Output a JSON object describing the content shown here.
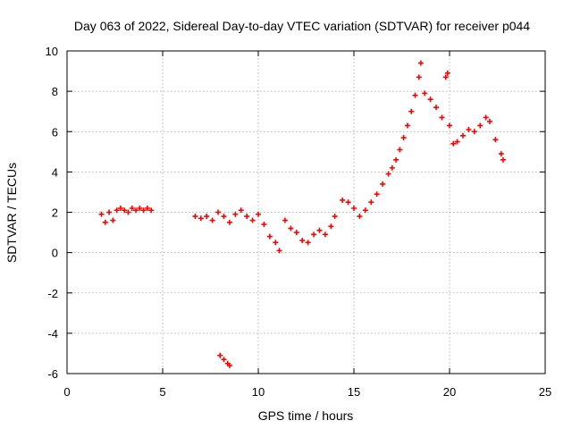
{
  "chart_data": {
    "type": "scatter",
    "title": "Day 063 of 2022, Sidereal Day-to-day VTEC variation (SDTVAR) for receiver p044",
    "xlabel": "GPS time / hours",
    "ylabel": "SDTVAR / TECUs",
    "xlim": [
      0,
      25
    ],
    "ylim": [
      -6,
      10
    ],
    "xticks": [
      "0",
      "5",
      "10",
      "15",
      "20",
      "25"
    ],
    "yticks": [
      "-6",
      "-4",
      "-2",
      "0",
      "2",
      "4",
      "6",
      "8",
      "10"
    ],
    "grid": true,
    "marker": "plus",
    "series_color": "#ff0000",
    "series": [
      {
        "name": "SDTVAR p044",
        "points": [
          [
            1.8,
            1.9
          ],
          [
            2.0,
            1.5
          ],
          [
            2.2,
            2.0
          ],
          [
            2.4,
            1.6
          ],
          [
            2.6,
            2.1
          ],
          [
            2.8,
            2.2
          ],
          [
            3.0,
            2.1
          ],
          [
            3.2,
            2.0
          ],
          [
            3.4,
            2.2
          ],
          [
            3.6,
            2.1
          ],
          [
            3.8,
            2.2
          ],
          [
            4.0,
            2.1
          ],
          [
            4.2,
            2.2
          ],
          [
            4.4,
            2.1
          ],
          [
            6.7,
            1.8
          ],
          [
            7.0,
            1.7
          ],
          [
            7.3,
            1.8
          ],
          [
            7.6,
            1.6
          ],
          [
            7.9,
            2.0
          ],
          [
            8.2,
            1.8
          ],
          [
            8.5,
            1.5
          ],
          [
            8.8,
            1.9
          ],
          [
            9.1,
            2.1
          ],
          [
            9.4,
            1.8
          ],
          [
            9.7,
            1.6
          ],
          [
            10.0,
            1.9
          ],
          [
            10.3,
            1.4
          ],
          [
            10.6,
            0.8
          ],
          [
            10.9,
            0.5
          ],
          [
            11.1,
            0.1
          ],
          [
            11.4,
            1.6
          ],
          [
            11.7,
            1.2
          ],
          [
            12.0,
            1.0
          ],
          [
            12.3,
            0.6
          ],
          [
            12.6,
            0.5
          ],
          [
            12.9,
            0.9
          ],
          [
            13.2,
            1.1
          ],
          [
            13.5,
            0.9
          ],
          [
            13.8,
            1.3
          ],
          [
            14.0,
            1.8
          ],
          [
            8.0,
            -5.1
          ],
          [
            8.2,
            -5.3
          ],
          [
            8.4,
            -5.5
          ],
          [
            8.5,
            -5.6
          ],
          [
            14.4,
            2.6
          ],
          [
            14.7,
            2.5
          ],
          [
            15.0,
            2.2
          ],
          [
            15.3,
            1.8
          ],
          [
            15.6,
            2.1
          ],
          [
            15.9,
            2.5
          ],
          [
            16.2,
            2.9
          ],
          [
            16.5,
            3.4
          ],
          [
            16.8,
            3.9
          ],
          [
            17.0,
            4.2
          ],
          [
            17.2,
            4.6
          ],
          [
            17.4,
            5.1
          ],
          [
            17.6,
            5.7
          ],
          [
            17.8,
            6.3
          ],
          [
            18.0,
            7.0
          ],
          [
            18.2,
            7.8
          ],
          [
            18.4,
            8.7
          ],
          [
            18.5,
            9.4
          ],
          [
            18.7,
            7.9
          ],
          [
            19.0,
            7.6
          ],
          [
            19.3,
            7.2
          ],
          [
            19.6,
            6.7
          ],
          [
            19.8,
            8.7
          ],
          [
            19.9,
            8.9
          ],
          [
            20.0,
            6.3
          ],
          [
            20.2,
            5.4
          ],
          [
            20.4,
            5.5
          ],
          [
            20.7,
            5.8
          ],
          [
            21.0,
            6.1
          ],
          [
            21.3,
            6.0
          ],
          [
            21.6,
            6.3
          ],
          [
            21.9,
            6.7
          ],
          [
            22.1,
            6.5
          ],
          [
            22.4,
            5.6
          ],
          [
            22.7,
            4.9
          ],
          [
            22.8,
            4.6
          ]
        ]
      }
    ]
  }
}
